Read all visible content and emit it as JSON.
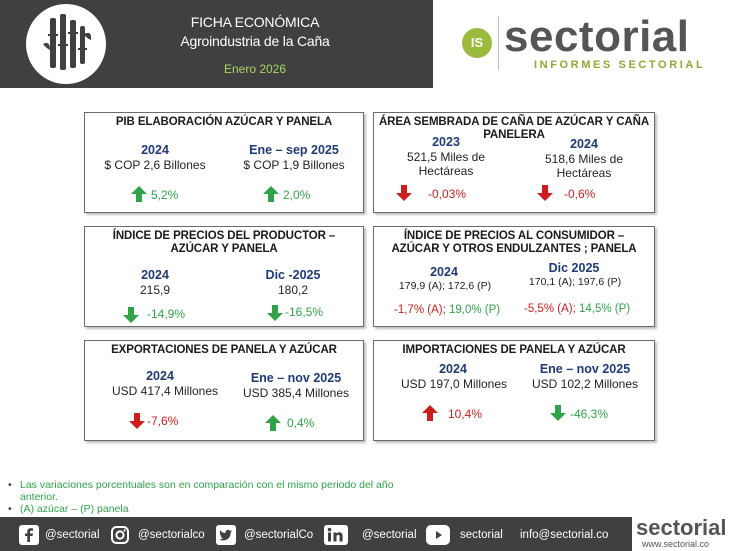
{
  "header": {
    "title_line1": "FICHA ECONÓMICA",
    "title_line2": "Agroindustria de la Caña",
    "date": "Enero 2026",
    "logo_icon": "cane-logo-icon",
    "brand_badge": "IS",
    "brand_name": "sectorial",
    "brand_sub": "INFORMES SECTORIAL"
  },
  "colors": {
    "up": "#2fa24a",
    "down": "#cc1e1e",
    "period": "#1f3a78",
    "header_bg": "#404040",
    "accent": "#a6d65c"
  },
  "cards": {
    "pib": {
      "title": "PIB ELABORACIÓN AZÚCAR Y PANELA",
      "left": {
        "period": "2024",
        "value": "$ COP 2,6 Billones",
        "change": "5,2%",
        "direction": "up"
      },
      "right": {
        "period": "Ene – sep 2025",
        "value": "$ COP 1,9 Billones",
        "change": "2,0%",
        "direction": "up"
      }
    },
    "area": {
      "title": "ÁREA SEMBRADA DE CAÑA DE AZÚCAR Y CAÑA PANELERA",
      "left": {
        "period": "2023",
        "value": "521,5 Miles de Hectáreas",
        "change": "-0,03%",
        "direction": "down"
      },
      "right": {
        "period": "2024",
        "value": "518,6 Miles de Hectáreas",
        "change": "-0,6%",
        "direction": "down"
      }
    },
    "ipp": {
      "title": "ÍNDICE DE PRECIOS DEL PRODUCTOR – AZÚCAR Y PANELA",
      "left": {
        "period": "2024",
        "value": "215,9",
        "change": "-14,9%",
        "direction": "down"
      },
      "right": {
        "period": "Dic -2025",
        "value": "180,2",
        "change": "-16,5%",
        "direction": "down"
      }
    },
    "ipc": {
      "title": "ÍNDICE DE PRECIOS AL CONSUMIDOR – AZÚCAR Y OTROS ENDULZANTES ; PANELA",
      "left": {
        "period": "2024",
        "value": "179,9 (A); 172,6 (P)",
        "change_a": "-1,7% (A);",
        "change_p": "19,0% (P)"
      },
      "right": {
        "period": "Dic 2025",
        "value": "170,1 (A); 197,6 (P)",
        "change_a": "-5,5% (A);",
        "change_p": "14,5% (P)"
      }
    },
    "export": {
      "title": "EXPORTACIONES DE PANELA Y AZÚCAR",
      "left": {
        "period": "2024",
        "value": "USD 417,4 Millones",
        "change": "-7,6%",
        "direction": "down"
      },
      "right": {
        "period": "Ene – nov 2025",
        "value": "USD 385,4 Millones",
        "change": "0,4%",
        "direction": "up"
      }
    },
    "import": {
      "title": "IMPORTACIONES DE PANELA Y AZÚCAR",
      "left": {
        "period": "2024",
        "value": "USD 197,0 Millones",
        "change": "10,4%",
        "direction": "up"
      },
      "right": {
        "period": "Ene – nov 2025",
        "value": "USD 102,2 Millones",
        "change": "-46,3%",
        "direction": "down"
      }
    }
  },
  "notes": [
    "Las variaciones porcentuales son en comparación con el mismo periodo del año",
    "anterior.",
    "(A) azúcar – (P) panela"
  ],
  "footer": {
    "facebook": "@sectorial",
    "instagram": "@sectorialco",
    "twitter": "@sectorialCo",
    "linkedin": "@sectorial",
    "youtube": "sectorial",
    "email": "info@sectorial.co",
    "brand_name": "sectorial",
    "brand_url": "www.sectorial.co"
  }
}
